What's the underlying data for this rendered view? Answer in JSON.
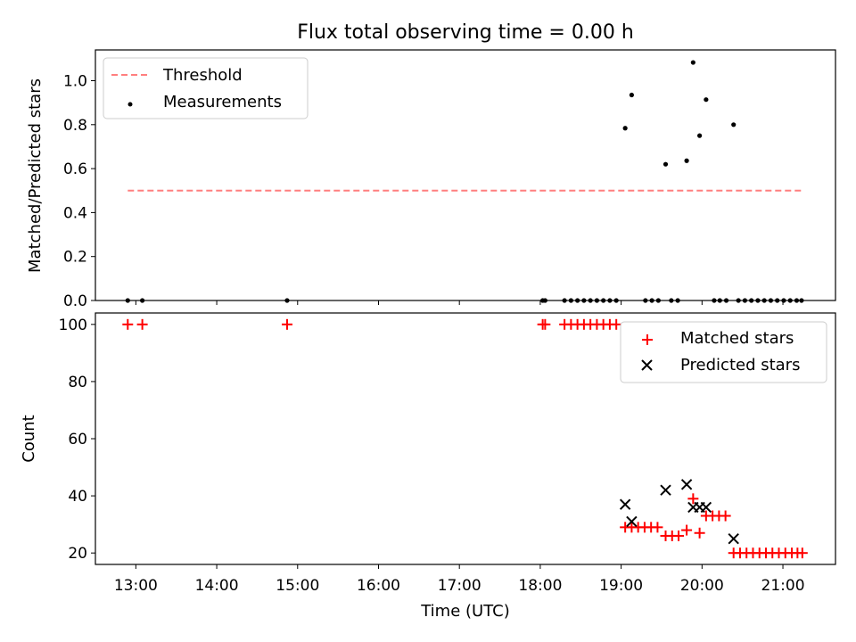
{
  "title": "Flux total observing time = 0.00 h",
  "xlabel": "Time (UTC)",
  "xticks": [
    {
      "value": 13,
      "label": "13:00"
    },
    {
      "value": 14,
      "label": "14:00"
    },
    {
      "value": 15,
      "label": "15:00"
    },
    {
      "value": 16,
      "label": "16:00"
    },
    {
      "value": 17,
      "label": "17:00"
    },
    {
      "value": 18,
      "label": "18:00"
    },
    {
      "value": 19,
      "label": "19:00"
    },
    {
      "value": 20,
      "label": "20:00"
    },
    {
      "value": 21,
      "label": "21:00"
    }
  ],
  "colors": {
    "threshold": "#ff7f7f",
    "measurements": "#000000",
    "matched": "#ff0000",
    "predicted": "#000000"
  },
  "chart_data": [
    {
      "type": "scatter",
      "ylabel": "Matched/Predicted stars",
      "xlim": [
        12.5,
        21.65
      ],
      "ylim": [
        0,
        1.14
      ],
      "yticks": [
        {
          "value": 0.0,
          "label": "0.0"
        },
        {
          "value": 0.2,
          "label": "0.2"
        },
        {
          "value": 0.4,
          "label": "0.4"
        },
        {
          "value": 0.6,
          "label": "0.6"
        },
        {
          "value": 0.8,
          "label": "0.8"
        },
        {
          "value": 1.0,
          "label": "1.0"
        }
      ],
      "legend": {
        "position": "top-left",
        "labels": [
          "Threshold",
          "Measurements"
        ]
      },
      "threshold": {
        "name": "Threshold",
        "y": 0.5,
        "x": [
          12.9,
          21.25
        ]
      },
      "series": [
        {
          "name": "Measurements",
          "marker": "dot",
          "points": [
            [
              12.9,
              0
            ],
            [
              13.08,
              0
            ],
            [
              14.87,
              0
            ],
            [
              18.03,
              0
            ],
            [
              18.06,
              0
            ],
            [
              18.3,
              0
            ],
            [
              18.38,
              0
            ],
            [
              18.46,
              0
            ],
            [
              18.54,
              0
            ],
            [
              18.62,
              0
            ],
            [
              18.7,
              0
            ],
            [
              18.78,
              0
            ],
            [
              18.86,
              0
            ],
            [
              18.94,
              0
            ],
            [
              19.3,
              0
            ],
            [
              19.38,
              0
            ],
            [
              19.46,
              0
            ],
            [
              19.62,
              0
            ],
            [
              19.7,
              0
            ],
            [
              20.15,
              0
            ],
            [
              20.22,
              0
            ],
            [
              20.3,
              0
            ],
            [
              20.45,
              0
            ],
            [
              20.53,
              0
            ],
            [
              20.61,
              0
            ],
            [
              20.69,
              0
            ],
            [
              20.77,
              0
            ],
            [
              20.85,
              0
            ],
            [
              20.93,
              0
            ],
            [
              21.01,
              0
            ],
            [
              21.09,
              0
            ],
            [
              21.17,
              0
            ],
            [
              21.23,
              0
            ],
            [
              19.05,
              0.784
            ],
            [
              19.13,
              0.935
            ],
            [
              19.55,
              0.62
            ],
            [
              19.81,
              0.636
            ],
            [
              19.89,
              1.083
            ],
            [
              19.97,
              0.75
            ],
            [
              20.05,
              0.914
            ],
            [
              20.39,
              0.8
            ]
          ]
        }
      ]
    },
    {
      "type": "scatter",
      "ylabel": "Count",
      "xlim": [
        12.5,
        21.65
      ],
      "ylim": [
        16,
        104
      ],
      "yticks": [
        {
          "value": 20,
          "label": "20"
        },
        {
          "value": 40,
          "label": "40"
        },
        {
          "value": 60,
          "label": "60"
        },
        {
          "value": 80,
          "label": "80"
        },
        {
          "value": 100,
          "label": "100"
        }
      ],
      "legend": {
        "position": "top-right",
        "labels": [
          "Matched stars",
          "Predicted stars"
        ]
      },
      "series": [
        {
          "name": "Matched stars",
          "marker": "plus",
          "points": [
            [
              12.9,
              100
            ],
            [
              13.08,
              100
            ],
            [
              14.87,
              100
            ],
            [
              18.03,
              100
            ],
            [
              18.06,
              100
            ],
            [
              18.3,
              100
            ],
            [
              18.38,
              100
            ],
            [
              18.46,
              100
            ],
            [
              18.54,
              100
            ],
            [
              18.62,
              100
            ],
            [
              18.7,
              100
            ],
            [
              18.78,
              100
            ],
            [
              18.86,
              100
            ],
            [
              18.94,
              100
            ],
            [
              19.05,
              29
            ],
            [
              19.13,
              29
            ],
            [
              19.21,
              29
            ],
            [
              19.29,
              29
            ],
            [
              19.37,
              29
            ],
            [
              19.45,
              29
            ],
            [
              19.55,
              26
            ],
            [
              19.63,
              26
            ],
            [
              19.71,
              26
            ],
            [
              19.81,
              28
            ],
            [
              19.89,
              39
            ],
            [
              19.97,
              27
            ],
            [
              20.05,
              33
            ],
            [
              20.13,
              33
            ],
            [
              20.21,
              33
            ],
            [
              20.29,
              33
            ],
            [
              20.39,
              20
            ],
            [
              20.47,
              20
            ],
            [
              20.55,
              20
            ],
            [
              20.63,
              20
            ],
            [
              20.71,
              20
            ],
            [
              20.79,
              20
            ],
            [
              20.87,
              20
            ],
            [
              20.95,
              20
            ],
            [
              21.03,
              20
            ],
            [
              21.11,
              20
            ],
            [
              21.18,
              20
            ],
            [
              21.24,
              20
            ]
          ]
        },
        {
          "name": "Predicted stars",
          "marker": "x",
          "points": [
            [
              19.05,
              37
            ],
            [
              19.13,
              31
            ],
            [
              19.55,
              42
            ],
            [
              19.81,
              44
            ],
            [
              19.89,
              36
            ],
            [
              19.97,
              36
            ],
            [
              20.05,
              36
            ],
            [
              20.39,
              25
            ]
          ]
        }
      ]
    }
  ]
}
